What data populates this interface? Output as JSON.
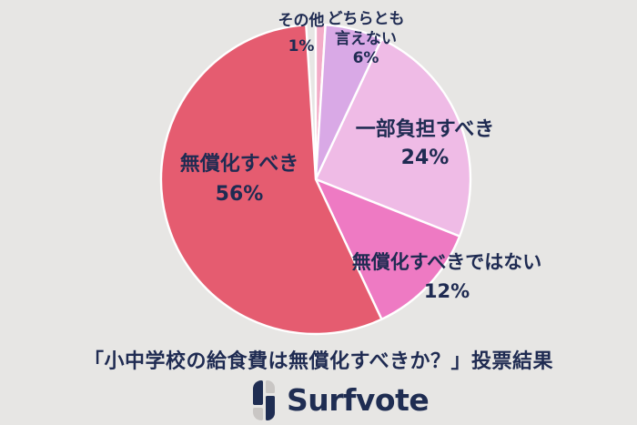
{
  "colors": {
    "background": "#E7E6E4",
    "label_text": "#1F2B52",
    "brand_navy": "#1F2D52",
    "brand_gray": "#C9C6C4",
    "slice_stroke": "#FFFFFF"
  },
  "chart_data": {
    "type": "pie",
    "title": "「小中学校の給食費は無償化すべきか？」投票結果",
    "direction": "clockwise",
    "start_angle": "12-oclock",
    "legend_position": "labels-on-chart",
    "slices": [
      {
        "label": "その他",
        "value": 1,
        "pct_label": "1%",
        "color": "#F3ACC8"
      },
      {
        "label": "どちらとも言えない",
        "value": 6,
        "pct_label": "6%",
        "color": "#D9A9E6"
      },
      {
        "label": "一部負担すべき",
        "value": 24,
        "pct_label": "24%",
        "color": "#EFBBE6"
      },
      {
        "label": "無償化すべきではない",
        "value": 12,
        "pct_label": "12%",
        "color": "#EE7AC3"
      },
      {
        "label": "無償化すべき",
        "value": 56,
        "pct_label": "56%",
        "color": "#E55C70"
      }
    ]
  },
  "footer": {
    "brand": "Surfvote",
    "logo_icon": "surfvote-quadrant-pill-icon"
  }
}
